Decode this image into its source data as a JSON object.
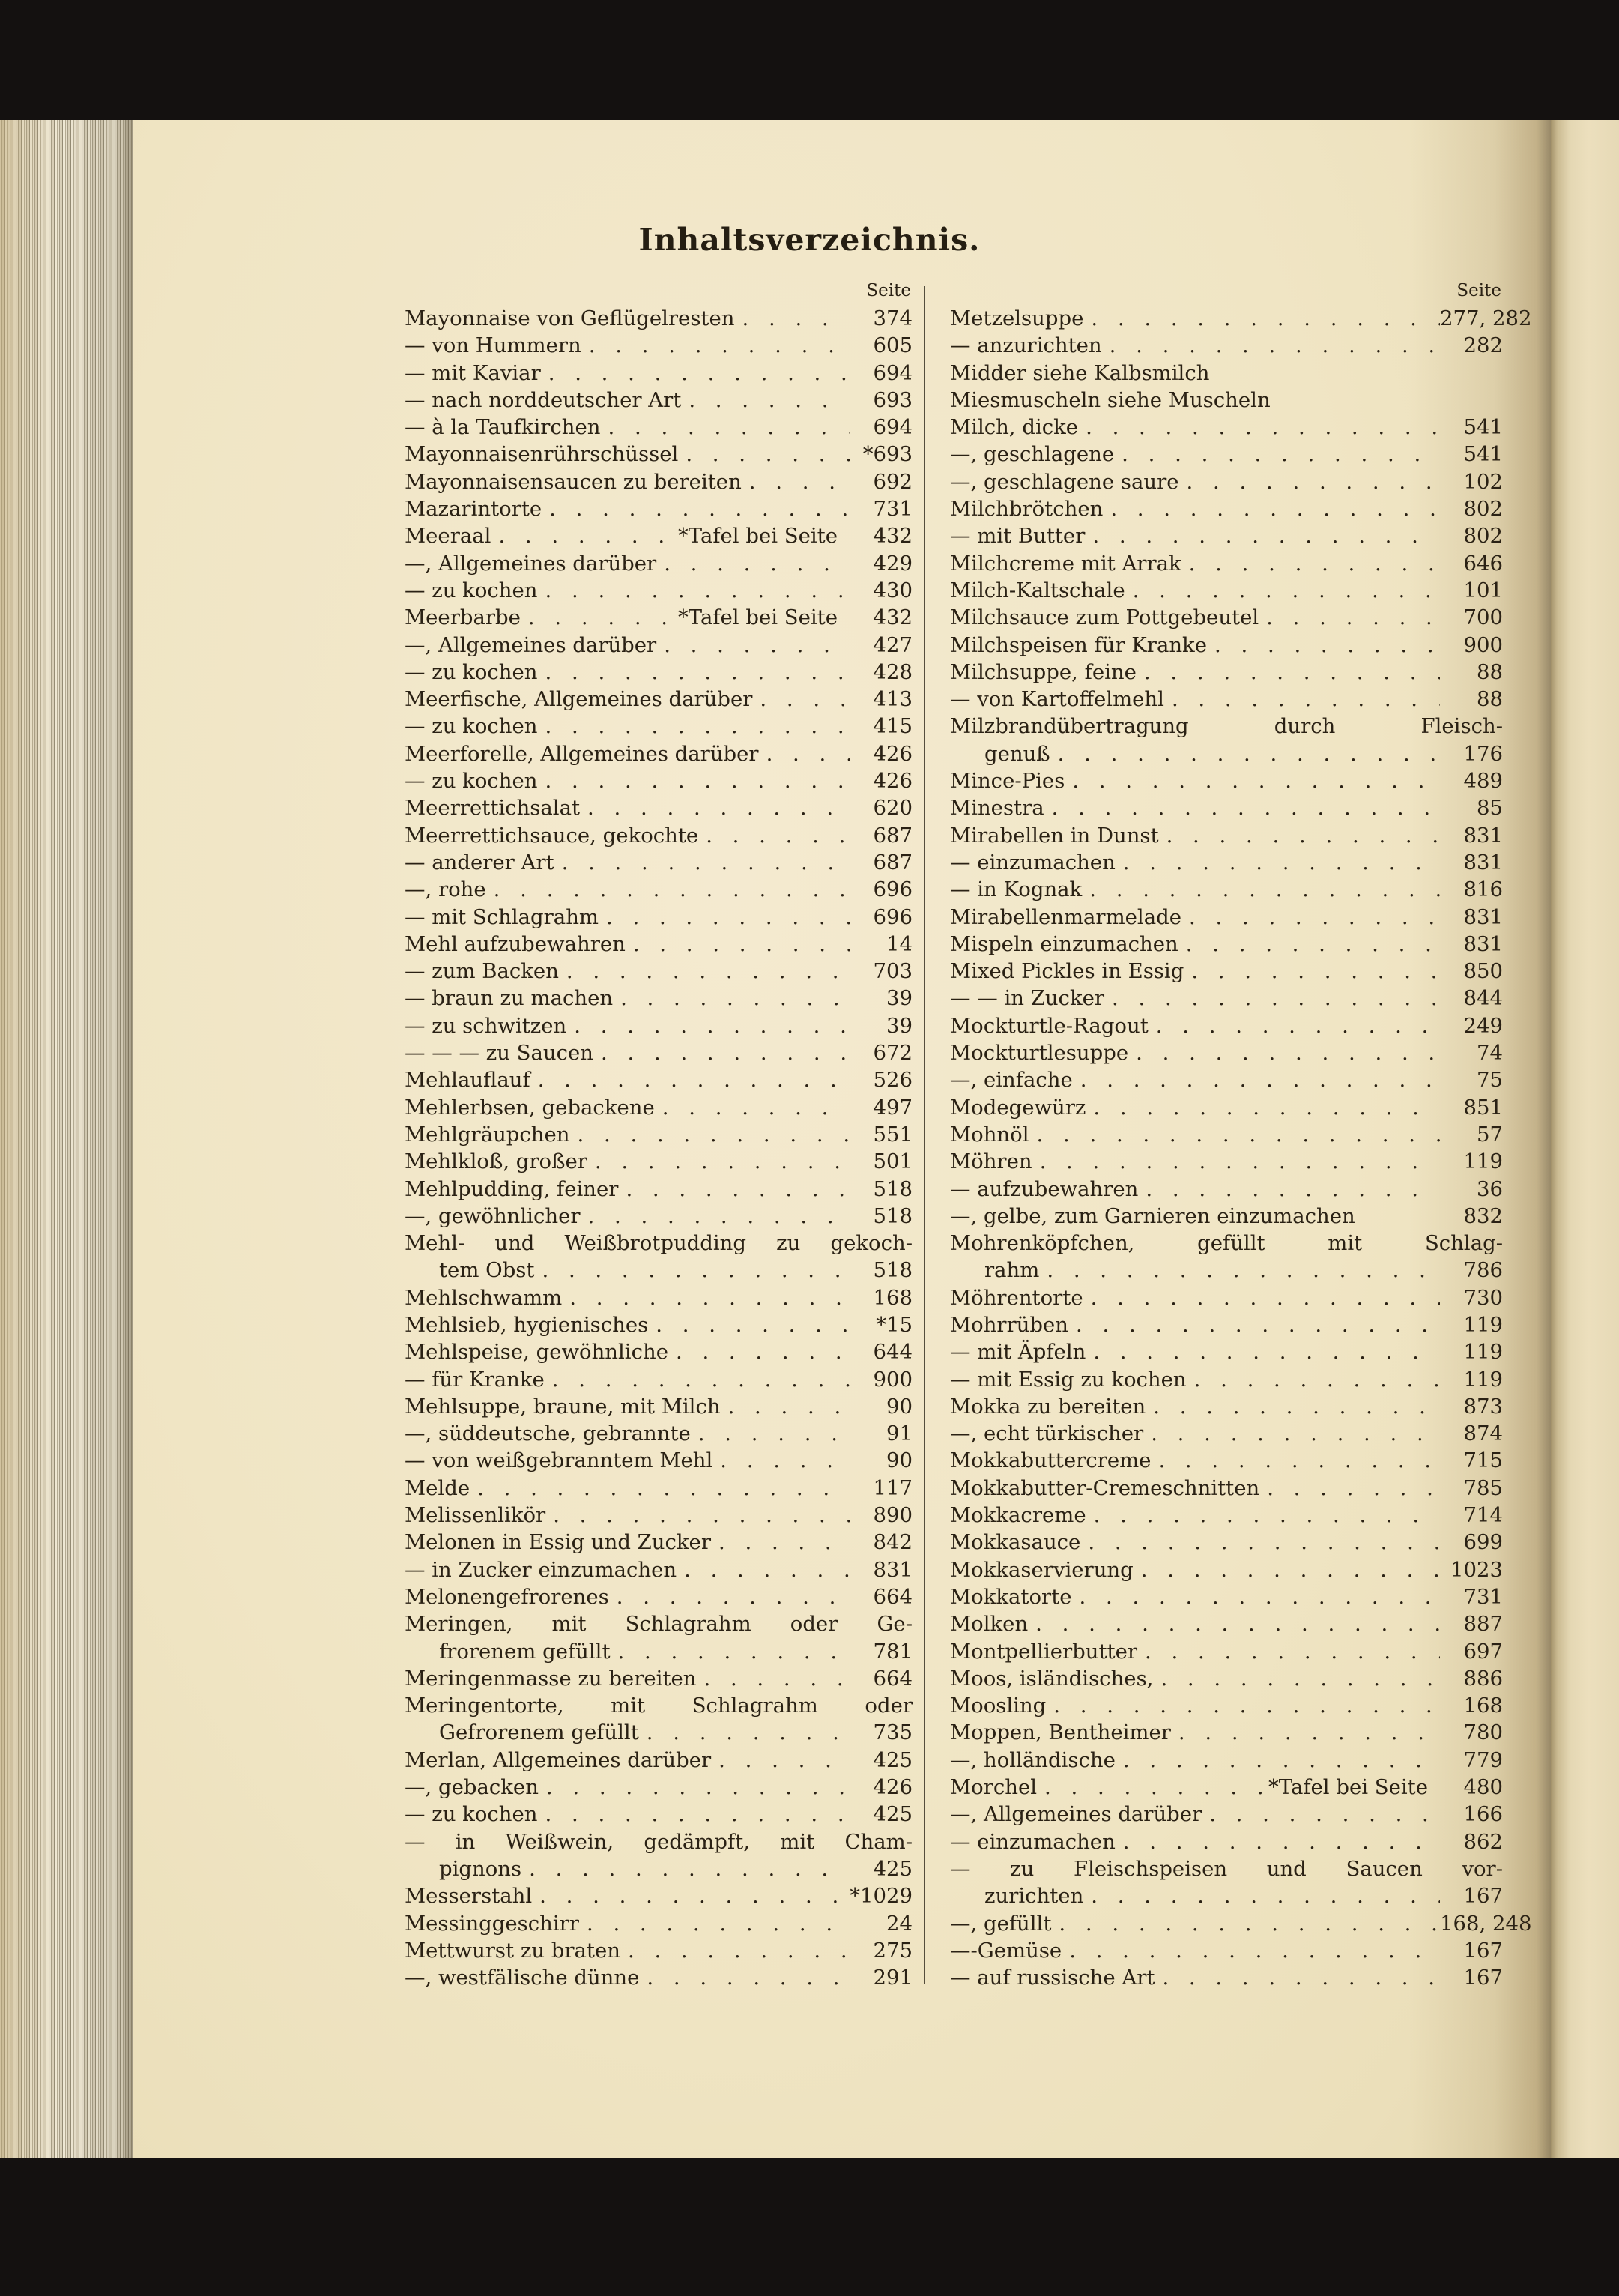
{
  "page": {
    "title": "Inhaltsverzeichnis.",
    "seite_label": "Seite"
  },
  "colors": {
    "paper": "#f0e5c4",
    "ink": "#2a2114",
    "background": "#141110"
  },
  "columns": {
    "left": {
      "seite_label": "Seite",
      "entries": [
        {
          "t": "Mayonnaise von Geflügelresten",
          "p": "374"
        },
        {
          "t": "— von Hummern",
          "p": "605"
        },
        {
          "t": "— mit Kaviar",
          "p": "694"
        },
        {
          "t": "— nach norddeutscher Art",
          "p": "693"
        },
        {
          "t": "— à la Taufkirchen",
          "p": "694"
        },
        {
          "t": "Mayonnaisenrührschüssel",
          "p": "*693"
        },
        {
          "t": "Mayonnaisensaucen zu bereiten",
          "p": "692"
        },
        {
          "t": "Mazarintorte",
          "p": "731"
        },
        {
          "t": "Meeraal",
          "note": "*Tafel bei Seite",
          "p": "432"
        },
        {
          "t": "—, Allgemeines darüber",
          "p": "429"
        },
        {
          "t": "— zu kochen",
          "p": "430"
        },
        {
          "t": "Meerbarbe",
          "note": "*Tafel bei Seite",
          "p": "432"
        },
        {
          "t": "—, Allgemeines darüber",
          "p": "427"
        },
        {
          "t": "— zu kochen",
          "p": "428"
        },
        {
          "t": "Meerfische, Allgemeines darüber",
          "p": "413"
        },
        {
          "t": "— zu kochen",
          "p": "415"
        },
        {
          "t": "Meerforelle, Allgemeines darüber",
          "p": "426"
        },
        {
          "t": "— zu kochen",
          "p": "426"
        },
        {
          "t": "Meerrettichsalat",
          "p": "620"
        },
        {
          "t": "Meerrettichsauce, gekochte",
          "p": "687"
        },
        {
          "t": "— anderer Art",
          "p": "687"
        },
        {
          "t": "—, rohe",
          "p": "696"
        },
        {
          "t": "— mit Schlagrahm",
          "p": "696"
        },
        {
          "t": "Mehl aufzubewahren",
          "p": "14"
        },
        {
          "t": "— zum Backen",
          "p": "703"
        },
        {
          "t": "— braun zu machen",
          "p": "39"
        },
        {
          "t": "— zu schwitzen",
          "p": "39"
        },
        {
          "t": "— — — zu Saucen",
          "p": "672"
        },
        {
          "t": "Mehlauflauf",
          "p": "526"
        },
        {
          "t": "Mehlerbsen, gebackene",
          "p": "497"
        },
        {
          "t": "Mehlgräupchen",
          "p": "551"
        },
        {
          "t": "Mehlkloß, großer",
          "p": "501"
        },
        {
          "t": "Mehlpudding, feiner",
          "p": "518"
        },
        {
          "t": "—, gewöhnlicher",
          "p": "518"
        },
        {
          "t": "Mehl- und Weißbrotpudding zu gekoch-",
          "t2": "tem Obst",
          "p": "518"
        },
        {
          "t": "Mehlschwamm",
          "p": "168"
        },
        {
          "t": "Mehlsieb, hygienisches",
          "p": "*15"
        },
        {
          "t": "Mehlspeise, gewöhnliche",
          "p": "644"
        },
        {
          "t": "— für Kranke",
          "p": "900"
        },
        {
          "t": "Mehlsuppe, braune, mit Milch",
          "p": "90"
        },
        {
          "t": "—, süddeutsche, gebrannte",
          "p": "91"
        },
        {
          "t": "— von weißgebranntem Mehl",
          "p": "90"
        },
        {
          "t": "Melde",
          "p": "117"
        },
        {
          "t": "Melissenlikör",
          "p": "890"
        },
        {
          "t": "Melonen in Essig und Zucker",
          "p": "842"
        },
        {
          "t": "— in Zucker einzumachen",
          "p": "831"
        },
        {
          "t": "Melonengefrorenes",
          "p": "664"
        },
        {
          "t": "Meringen, mit Schlagrahm oder Ge-",
          "t2": "frorenem gefüllt",
          "p": "781"
        },
        {
          "t": "Meringenmasse zu bereiten",
          "p": "664"
        },
        {
          "t": "Meringentorte, mit Schlagrahm oder",
          "t2": "Gefrorenem gefüllt",
          "p": "735"
        },
        {
          "t": "Merlan, Allgemeines darüber",
          "p": "425"
        },
        {
          "t": "—, gebacken",
          "p": "426"
        },
        {
          "t": "— zu kochen",
          "p": "425"
        },
        {
          "t": "— in Weißwein, gedämpft, mit Cham-",
          "t2": "pignons",
          "p": "425"
        },
        {
          "t": "Messerstahl",
          "p": "*1029"
        },
        {
          "t": "Messinggeschirr",
          "p": "24"
        },
        {
          "t": "Mettwurst zu braten",
          "p": "275"
        },
        {
          "t": "—, westfälische dünne",
          "p": "291"
        }
      ]
    },
    "right": {
      "seite_label": "Seite",
      "entries": [
        {
          "t": "Metzelsuppe",
          "p": "277, 282"
        },
        {
          "t": "— anzurichten",
          "p": "282"
        },
        {
          "t": "Midder siehe Kalbsmilch",
          "p": "",
          "dots": false
        },
        {
          "t": "Miesmuscheln siehe Muscheln",
          "p": "",
          "dots": false
        },
        {
          "t": "Milch, dicke",
          "p": "541"
        },
        {
          "t": "—, geschlagene",
          "p": "541"
        },
        {
          "t": "—, geschlagene saure",
          "p": "102"
        },
        {
          "t": "Milchbrötchen",
          "p": "802"
        },
        {
          "t": "— mit Butter",
          "p": "802"
        },
        {
          "t": "Milchcreme mit Arrak",
          "p": "646"
        },
        {
          "t": "Milch-Kaltschale",
          "p": "101"
        },
        {
          "t": "Milchsauce zum Pottgebeutel",
          "p": "700"
        },
        {
          "t": "Milchspeisen für Kranke",
          "p": "900"
        },
        {
          "t": "Milchsuppe, feine",
          "p": "88"
        },
        {
          "t": "— von Kartoffelmehl",
          "p": "88"
        },
        {
          "t": "Milzbrandübertragung durch Fleisch-",
          "t2": "genuß",
          "p": "176"
        },
        {
          "t": "Mince-Pies",
          "p": "489"
        },
        {
          "t": "Minestra",
          "p": "85"
        },
        {
          "t": "Mirabellen in Dunst",
          "p": "831"
        },
        {
          "t": "— einzumachen",
          "p": "831"
        },
        {
          "t": "— in Kognak",
          "p": "816"
        },
        {
          "t": "Mirabellenmarmelade",
          "p": "831"
        },
        {
          "t": "Mispeln einzumachen",
          "p": "831"
        },
        {
          "t": "Mixed Pickles in Essig",
          "p": "850"
        },
        {
          "t": "— — in Zucker",
          "p": "844"
        },
        {
          "t": "Mockturtle-Ragout",
          "p": "249"
        },
        {
          "t": "Mockturtlesuppe",
          "p": "74"
        },
        {
          "t": "—, einfache",
          "p": "75"
        },
        {
          "t": "Modegewürz",
          "p": "851"
        },
        {
          "t": "Mohnöl",
          "p": "57"
        },
        {
          "t": "Möhren",
          "p": "119"
        },
        {
          "t": "— aufzubewahren",
          "p": "36"
        },
        {
          "t": "—, gelbe, zum Garnieren einzumachen",
          "p": "832",
          "dots": false
        },
        {
          "t": "Mohrenköpfchen, gefüllt mit Schlag-",
          "t2": "rahm",
          "p": "786"
        },
        {
          "t": "Möhrentorte",
          "p": "730"
        },
        {
          "t": "Mohrrüben",
          "p": "119"
        },
        {
          "t": "— mit Äpfeln",
          "p": "119"
        },
        {
          "t": "— mit Essig zu kochen",
          "p": "119"
        },
        {
          "t": "Mokka zu bereiten",
          "p": "873"
        },
        {
          "t": "—, echt türkischer",
          "p": "874"
        },
        {
          "t": "Mokkabuttercreme",
          "p": "715"
        },
        {
          "t": "Mokkabutter-Cremeschnitten",
          "p": "785"
        },
        {
          "t": "Mokkacreme",
          "p": "714"
        },
        {
          "t": "Mokkasauce",
          "p": "699"
        },
        {
          "t": "Mokkaservierung",
          "p": "1023"
        },
        {
          "t": "Mokkatorte",
          "p": "731"
        },
        {
          "t": "Molken",
          "p": "887"
        },
        {
          "t": "Montpellierbutter",
          "p": "697"
        },
        {
          "t": "Moos, isländisches,",
          "p": "886"
        },
        {
          "t": "Moosling",
          "p": "168"
        },
        {
          "t": "Moppen, Bentheimer",
          "p": "780"
        },
        {
          "t": "—, holländische",
          "p": "779"
        },
        {
          "t": "Morchel",
          "note": "*Tafel bei Seite",
          "p": "480"
        },
        {
          "t": "—, Allgemeines darüber",
          "p": "166"
        },
        {
          "t": "— einzumachen",
          "p": "862"
        },
        {
          "t": "— zu Fleischspeisen und Saucen vor-",
          "t2": "zurichten",
          "p": "167"
        },
        {
          "t": "—, gefüllt",
          "p": "168, 248"
        },
        {
          "t": "—-Gemüse",
          "p": "167"
        },
        {
          "t": "— auf russische Art",
          "p": "167"
        }
      ]
    }
  }
}
